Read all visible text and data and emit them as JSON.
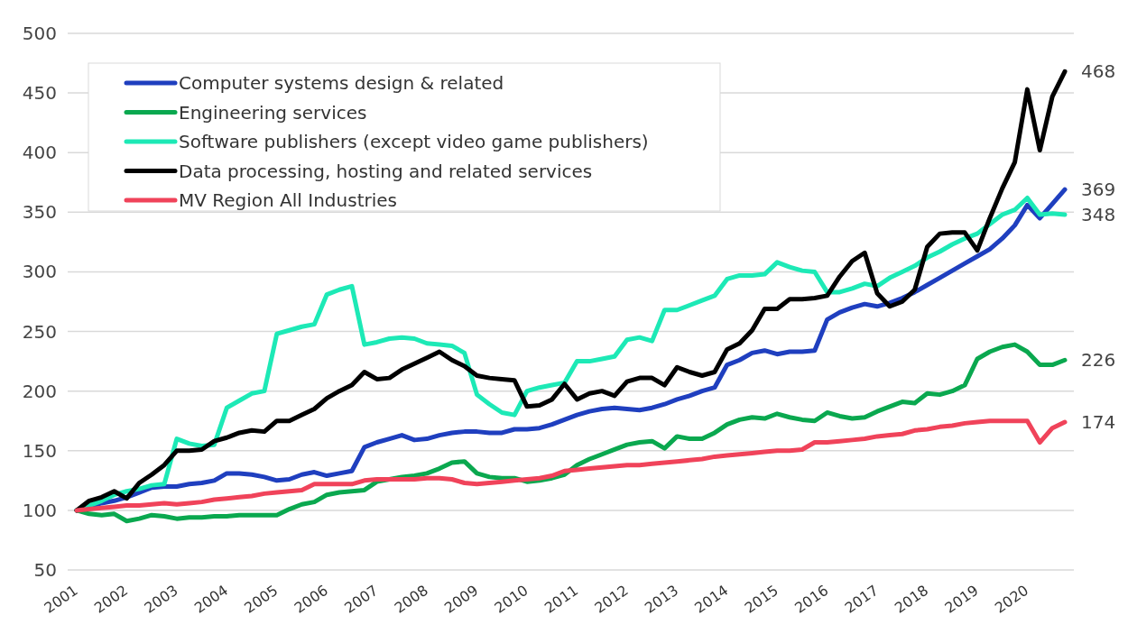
{
  "chart_data": {
    "type": "line",
    "categories": [
      "2001",
      null,
      null,
      null,
      "2002",
      null,
      null,
      null,
      "2003",
      null,
      null,
      null,
      "2004",
      null,
      null,
      null,
      "2005",
      null,
      null,
      null,
      "2006",
      null,
      null,
      null,
      "2007",
      null,
      null,
      null,
      "2008",
      null,
      null,
      null,
      "2009",
      null,
      null,
      null,
      "2010",
      null,
      null,
      null,
      "2011",
      null,
      null,
      null,
      "2012",
      null,
      null,
      null,
      "2013",
      null,
      null,
      null,
      "2014",
      null,
      null,
      null,
      "2015",
      null,
      null,
      null,
      "2016",
      null,
      null,
      null,
      "2017",
      null,
      null,
      null,
      "2018",
      null,
      null,
      null,
      "2019",
      null,
      null,
      null,
      "2020",
      null,
      null,
      null
    ],
    "ylim": [
      50,
      500
    ],
    "yticks": [
      50,
      100,
      150,
      200,
      250,
      300,
      350,
      400,
      450,
      500
    ],
    "grid": "y",
    "legend": "top left",
    "marker": "none",
    "line_style": "solid",
    "series": [
      {
        "name": "Computer systems design & related",
        "color": "#1f3fbf",
        "values": [
          100,
          103,
          106,
          108,
          111,
          115,
          119,
          120,
          120,
          122,
          123,
          125,
          131,
          131,
          130,
          128,
          125,
          126,
          130,
          132,
          129,
          131,
          133,
          153,
          157,
          160,
          163,
          159,
          160,
          163,
          165,
          166,
          166,
          165,
          165,
          168,
          168,
          169,
          172,
          176,
          180,
          183,
          185,
          186,
          185,
          184,
          186,
          189,
          193,
          196,
          200,
          203,
          222,
          226,
          232,
          234,
          231,
          233,
          233,
          234,
          260,
          266,
          270,
          273,
          271,
          274,
          278,
          283,
          289,
          295,
          301,
          307,
          313,
          319,
          328,
          339,
          356,
          345,
          357,
          369
        ],
        "value_labels": [
          null,
          null,
          null,
          null,
          null,
          null,
          null,
          null,
          null,
          null,
          null,
          null,
          null,
          null,
          null,
          null,
          null,
          null,
          null,
          null,
          null,
          null,
          null,
          null,
          null,
          null,
          null,
          null,
          null,
          null,
          null,
          null,
          null,
          null,
          null,
          null,
          null,
          null,
          null,
          null,
          null,
          null,
          null,
          null,
          null,
          null,
          null,
          null,
          null,
          null,
          null,
          null,
          null,
          null,
          null,
          null,
          null,
          null,
          null,
          null,
          null,
          null,
          null,
          null,
          null,
          null,
          null,
          null,
          null,
          null,
          null,
          null,
          null,
          null,
          null,
          null,
          null,
          null,
          null,
          "369"
        ]
      },
      {
        "name": "Engineering services",
        "color": "#0aa84f",
        "values": [
          100,
          97,
          96,
          97,
          91,
          93,
          96,
          95,
          93,
          94,
          94,
          95,
          95,
          96,
          96,
          96,
          96,
          101,
          105,
          107,
          113,
          115,
          116,
          117,
          124,
          126,
          128,
          129,
          131,
          135,
          140,
          141,
          131,
          128,
          127,
          127,
          124,
          125,
          127,
          130,
          138,
          143,
          147,
          151,
          155,
          157,
          158,
          152,
          162,
          160,
          160,
          165,
          172,
          176,
          178,
          177,
          181,
          178,
          176,
          175,
          182,
          179,
          177,
          178,
          183,
          187,
          191,
          190,
          198,
          197,
          200,
          205,
          227,
          233,
          237,
          239,
          233,
          222,
          222,
          226
        ],
        "value_labels": [
          null,
          null,
          null,
          null,
          null,
          null,
          null,
          null,
          null,
          null,
          null,
          null,
          null,
          null,
          null,
          null,
          null,
          null,
          null,
          null,
          null,
          null,
          null,
          null,
          null,
          null,
          null,
          null,
          null,
          null,
          null,
          null,
          null,
          null,
          null,
          null,
          null,
          null,
          null,
          null,
          null,
          null,
          null,
          null,
          null,
          null,
          null,
          null,
          null,
          null,
          null,
          null,
          null,
          null,
          null,
          null,
          null,
          null,
          null,
          null,
          null,
          null,
          null,
          null,
          null,
          null,
          null,
          null,
          null,
          null,
          null,
          null,
          null,
          null,
          null,
          null,
          null,
          null,
          null,
          "226"
        ]
      },
      {
        "name": "Software publishers (except video game publishers)",
        "color": "#1de9b6",
        "values": [
          100,
          104,
          108,
          113,
          116,
          118,
          121,
          122,
          160,
          156,
          154,
          155,
          186,
          192,
          198,
          200,
          248,
          251,
          254,
          256,
          281,
          285,
          288,
          239,
          241,
          244,
          245,
          244,
          240,
          239,
          238,
          232,
          197,
          189,
          182,
          180,
          200,
          203,
          205,
          207,
          225,
          225,
          227,
          229,
          243,
          245,
          242,
          268,
          268,
          272,
          276,
          280,
          294,
          297,
          297,
          298,
          308,
          304,
          301,
          300,
          283,
          283,
          286,
          290,
          288,
          295,
          300,
          305,
          312,
          317,
          323,
          328,
          332,
          340,
          348,
          352,
          362,
          348,
          349,
          348
        ],
        "value_labels": [
          null,
          null,
          null,
          null,
          null,
          null,
          null,
          null,
          null,
          null,
          null,
          null,
          null,
          null,
          null,
          null,
          null,
          null,
          null,
          null,
          null,
          null,
          null,
          null,
          null,
          null,
          null,
          null,
          null,
          null,
          null,
          null,
          null,
          null,
          null,
          null,
          null,
          null,
          null,
          null,
          null,
          null,
          null,
          null,
          null,
          null,
          null,
          null,
          null,
          null,
          null,
          null,
          null,
          null,
          null,
          null,
          null,
          null,
          null,
          null,
          null,
          null,
          null,
          null,
          null,
          null,
          null,
          null,
          null,
          null,
          null,
          null,
          null,
          null,
          null,
          null,
          null,
          null,
          null,
          "348"
        ]
      },
      {
        "name": "Data processing, hosting and related services",
        "color": "#000000",
        "values": [
          100,
          108,
          111,
          116,
          110,
          123,
          130,
          138,
          150,
          150,
          151,
          158,
          161,
          165,
          167,
          166,
          175,
          175,
          180,
          185,
          194,
          200,
          205,
          216,
          210,
          211,
          218,
          223,
          228,
          233,
          226,
          221,
          213,
          211,
          210,
          209,
          187,
          188,
          193,
          206,
          193,
          198,
          200,
          196,
          208,
          211,
          211,
          205,
          220,
          216,
          213,
          216,
          235,
          240,
          251,
          269,
          269,
          277,
          277,
          278,
          280,
          296,
          309,
          316,
          282,
          271,
          275,
          285,
          321,
          332,
          333,
          333,
          318,
          345,
          370,
          392,
          453,
          402,
          447,
          468
        ],
        "value_labels": [
          null,
          null,
          null,
          null,
          null,
          null,
          null,
          null,
          null,
          null,
          null,
          null,
          null,
          null,
          null,
          null,
          null,
          null,
          null,
          null,
          null,
          null,
          null,
          null,
          null,
          null,
          null,
          null,
          null,
          null,
          null,
          null,
          null,
          null,
          null,
          null,
          null,
          null,
          null,
          null,
          null,
          null,
          null,
          null,
          null,
          null,
          null,
          null,
          null,
          null,
          null,
          null,
          null,
          null,
          null,
          null,
          null,
          null,
          null,
          null,
          null,
          null,
          null,
          null,
          null,
          null,
          null,
          null,
          null,
          null,
          null,
          null,
          null,
          null,
          null,
          null,
          null,
          null,
          null,
          "468"
        ]
      },
      {
        "name": "MV Region All Industries",
        "color": "#f0435a",
        "values": [
          100,
          101,
          102,
          103,
          104,
          104,
          105,
          106,
          105,
          106,
          107,
          109,
          110,
          111,
          112,
          114,
          115,
          116,
          117,
          122,
          122,
          122,
          122,
          125,
          126,
          126,
          126,
          126,
          127,
          127,
          126,
          123,
          122,
          123,
          124,
          125,
          126,
          127,
          129,
          133,
          134,
          135,
          136,
          137,
          138,
          138,
          139,
          140,
          141,
          142,
          143,
          145,
          146,
          147,
          148,
          149,
          150,
          150,
          151,
          157,
          157,
          158,
          159,
          160,
          162,
          163,
          164,
          167,
          168,
          170,
          171,
          173,
          174,
          175,
          175,
          175,
          175,
          157,
          169,
          174
        ],
        "value_labels": [
          null,
          null,
          null,
          null,
          null,
          null,
          null,
          null,
          null,
          null,
          null,
          null,
          null,
          null,
          null,
          null,
          null,
          null,
          null,
          null,
          null,
          null,
          null,
          null,
          null,
          null,
          null,
          null,
          null,
          null,
          null,
          null,
          null,
          null,
          null,
          null,
          null,
          null,
          null,
          null,
          null,
          null,
          null,
          null,
          null,
          null,
          null,
          null,
          null,
          null,
          null,
          null,
          null,
          null,
          null,
          null,
          null,
          null,
          null,
          null,
          null,
          null,
          null,
          null,
          null,
          null,
          null,
          null,
          null,
          null,
          null,
          null,
          null,
          null,
          null,
          null,
          null,
          null,
          null,
          "174"
        ]
      }
    ]
  }
}
